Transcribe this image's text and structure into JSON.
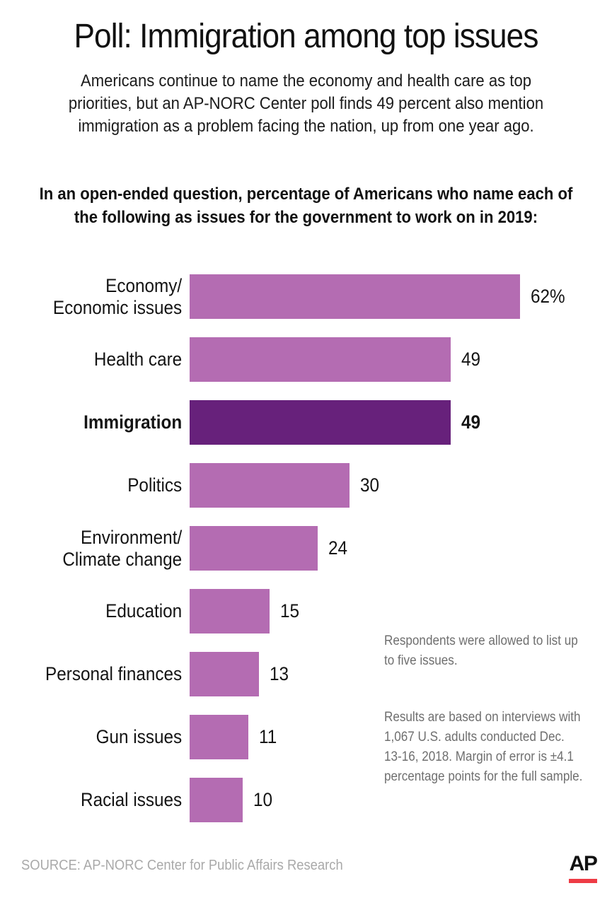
{
  "header": {
    "title": "Poll: Immigration among top issues",
    "subtitle_lines": [
      "Americans continue to name the economy and health care as top",
      "priorities, but an AP-NORC Center poll finds 49 percent also mention",
      "immigration as a problem facing the nation, up from one year ago."
    ]
  },
  "chart_heading_lines": [
    "In an open-ended question, percentage of Americans who name each of",
    "the following as issues for the government to work on in 2019:"
  ],
  "chart_data": {
    "type": "bar",
    "orientation": "horizontal",
    "unit": "percent of Americans",
    "xlim": [
      0,
      66
    ],
    "grid": false,
    "legend": "none",
    "categories": [
      "Economy/Economic issues",
      "Health care",
      "Immigration",
      "Politics",
      "Environment/Climate change",
      "Education",
      "Personal finances",
      "Gun issues",
      "Racial issues"
    ],
    "values": [
      62,
      49,
      49,
      30,
      24,
      15,
      13,
      11,
      10
    ],
    "value_labels": [
      "62%",
      "49",
      "49",
      "30",
      "24",
      "15",
      "13",
      "11",
      "10"
    ],
    "highlight_index": 2,
    "highlight_category": "Immigration",
    "bar_color": "#b46cb2",
    "highlight_color": "#67217b"
  },
  "notes": [
    {
      "lines": [
        "Respondents were allowed to list up",
        "to five issues."
      ]
    },
    {
      "lines": [
        "Results are based on interviews with",
        "1,067 U.S. adults conducted Dec.",
        "13-16, 2018. Margin of error is ±4.1",
        "percentage points for the full sample."
      ]
    }
  ],
  "footer": {
    "source": "SOURCE: AP-NORC Center for Public Affairs Research",
    "ap_logo_text": "AP",
    "ap_logo_red": "#ee3b45"
  }
}
